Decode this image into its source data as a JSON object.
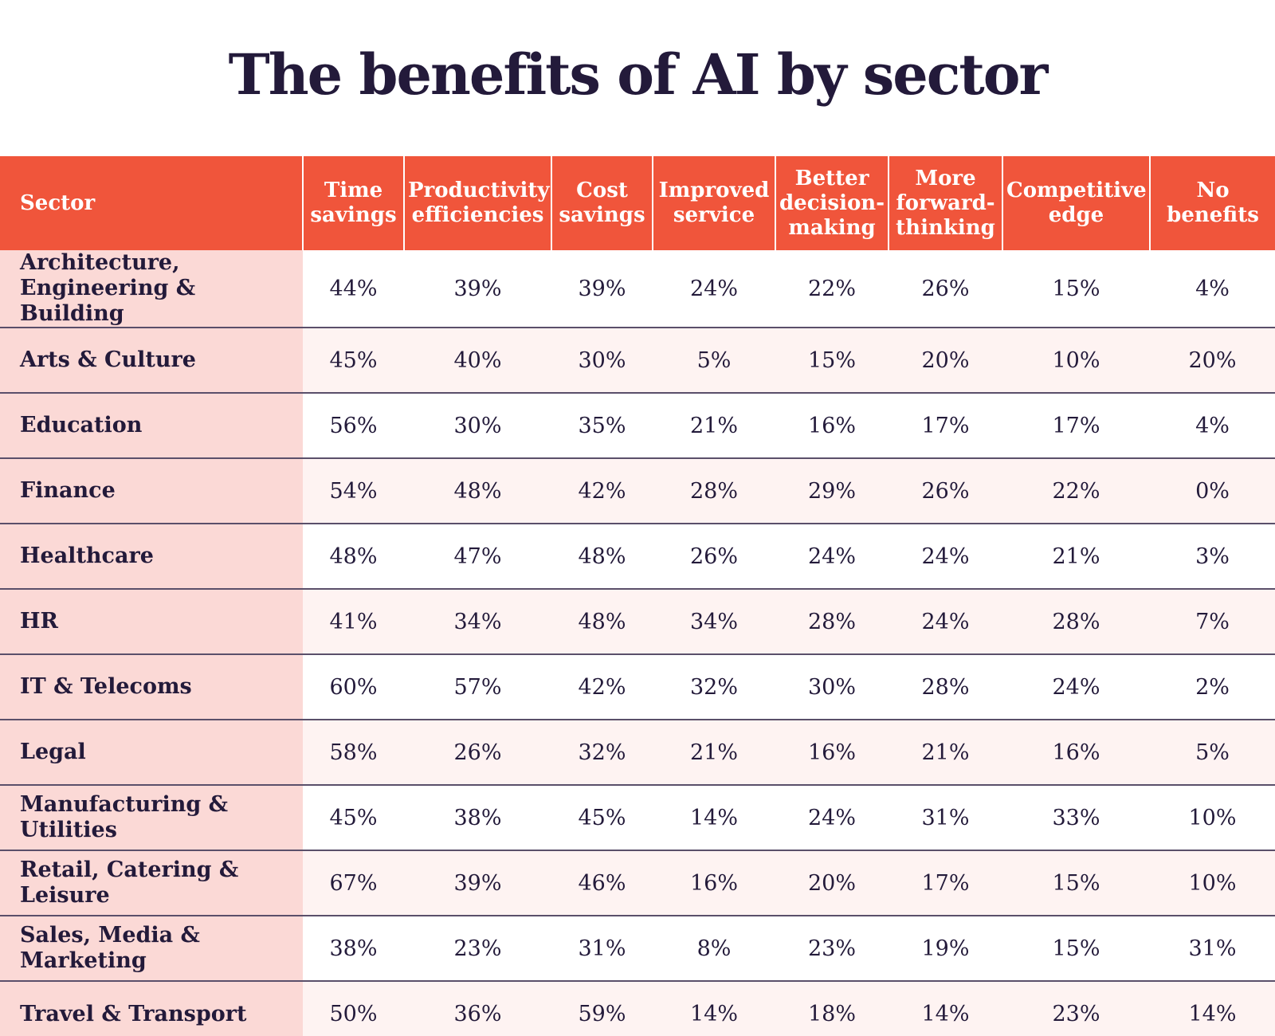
{
  "title": "The benefits of AI by sector",
  "colors": {
    "header_bg": "#f0553b",
    "sector_bg": "#fbd9d6",
    "stripe_bg": "#fef3f2",
    "text": "#231a3a"
  },
  "chart_data": {
    "type": "table",
    "title": "The benefits of AI by sector",
    "columns": [
      "Sector",
      "Time savings",
      "Productivity efficiencies",
      "Cost savings",
      "Improved service",
      "Better decision-making",
      "More forward-thinking",
      "Competitive edge",
      "No benefits"
    ],
    "header_lines": [
      [
        "Sector"
      ],
      [
        "Time",
        "savings"
      ],
      [
        "Productivity",
        "efficiencies"
      ],
      [
        "Cost",
        "savings"
      ],
      [
        "Improved",
        "service"
      ],
      [
        "Better",
        "decision-",
        "making"
      ],
      [
        "More",
        "forward-",
        "thinking"
      ],
      [
        "Competitive",
        "edge"
      ],
      [
        "No",
        "benefits"
      ]
    ],
    "rows": [
      {
        "sector": "Architecture, Engineering & Building",
        "values": [
          "44%",
          "39%",
          "39%",
          "24%",
          "22%",
          "26%",
          "15%",
          "4%"
        ]
      },
      {
        "sector": "Arts & Culture",
        "values": [
          "45%",
          "40%",
          "30%",
          "5%",
          "15%",
          "20%",
          "10%",
          "20%"
        ]
      },
      {
        "sector": "Education",
        "values": [
          "56%",
          "30%",
          "35%",
          "21%",
          "16%",
          "17%",
          "17%",
          "4%"
        ]
      },
      {
        "sector": "Finance",
        "values": [
          "54%",
          "48%",
          "42%",
          "28%",
          "29%",
          "26%",
          "22%",
          "0%"
        ]
      },
      {
        "sector": "Healthcare",
        "values": [
          "48%",
          "47%",
          "48%",
          "26%",
          "24%",
          "24%",
          "21%",
          "3%"
        ]
      },
      {
        "sector": "HR",
        "values": [
          "41%",
          "34%",
          "48%",
          "34%",
          "28%",
          "24%",
          "28%",
          "7%"
        ]
      },
      {
        "sector": "IT & Telecoms",
        "values": [
          "60%",
          "57%",
          "42%",
          "32%",
          "30%",
          "28%",
          "24%",
          "2%"
        ]
      },
      {
        "sector": "Legal",
        "values": [
          "58%",
          "26%",
          "32%",
          "21%",
          "16%",
          "21%",
          "16%",
          "5%"
        ]
      },
      {
        "sector": "Manufacturing & Utilities",
        "values": [
          "45%",
          "38%",
          "45%",
          "14%",
          "24%",
          "31%",
          "33%",
          "10%"
        ]
      },
      {
        "sector": "Retail, Catering & Leisure",
        "values": [
          "67%",
          "39%",
          "46%",
          "16%",
          "20%",
          "17%",
          "15%",
          "10%"
        ]
      },
      {
        "sector": "Sales, Media & Marketing",
        "values": [
          "38%",
          "23%",
          "31%",
          "8%",
          "23%",
          "19%",
          "15%",
          "31%"
        ]
      },
      {
        "sector": "Travel & Transport",
        "values": [
          "50%",
          "36%",
          "59%",
          "14%",
          "18%",
          "14%",
          "23%",
          "14%"
        ]
      }
    ]
  }
}
